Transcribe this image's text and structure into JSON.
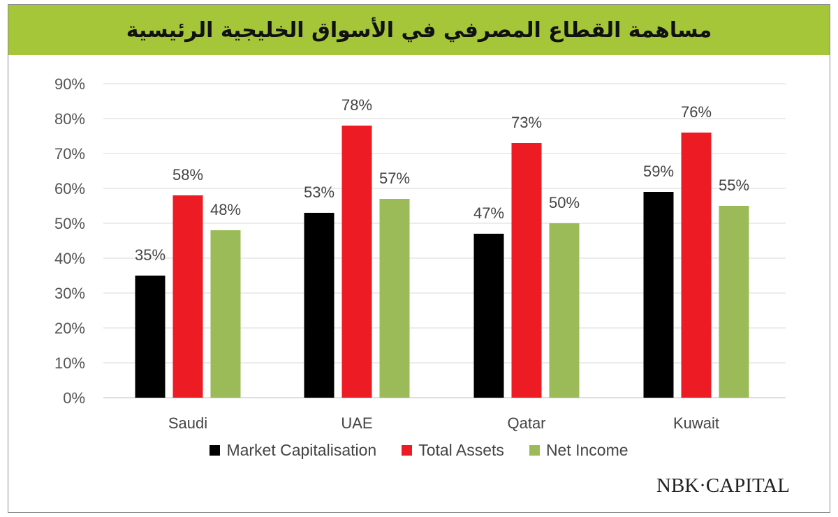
{
  "title": "مساهمة القطاع المصرفي في الأسواق الخليجية الرئيسية",
  "logo_text": "NBK·CAPITAL",
  "colors": {
    "title_bar": "#a6c639",
    "grid": "#d9d9d9"
  },
  "chart_data": {
    "type": "bar",
    "categories": [
      "Saudi",
      "UAE",
      "Qatar",
      "Kuwait"
    ],
    "series": [
      {
        "name": "Market Capitalisation",
        "color": "#000000",
        "values": [
          35,
          53,
          47,
          59
        ]
      },
      {
        "name": "Total Assets",
        "color": "#ed1c24",
        "values": [
          58,
          78,
          73,
          76
        ]
      },
      {
        "name": "Net Income",
        "color": "#9bbb59",
        "values": [
          48,
          57,
          50,
          55
        ]
      }
    ],
    "data_labels": [
      [
        "35%",
        "53%",
        "47%",
        "59%"
      ],
      [
        "58%",
        "78%",
        "73%",
        "76%"
      ],
      [
        "48%",
        "57%",
        "50%",
        "55%"
      ]
    ],
    "y_ticks": [
      "0%",
      "10%",
      "20%",
      "30%",
      "40%",
      "50%",
      "60%",
      "70%",
      "80%",
      "90%"
    ],
    "ylim": [
      0,
      90
    ],
    "grid": true,
    "legend_position": "bottom"
  }
}
